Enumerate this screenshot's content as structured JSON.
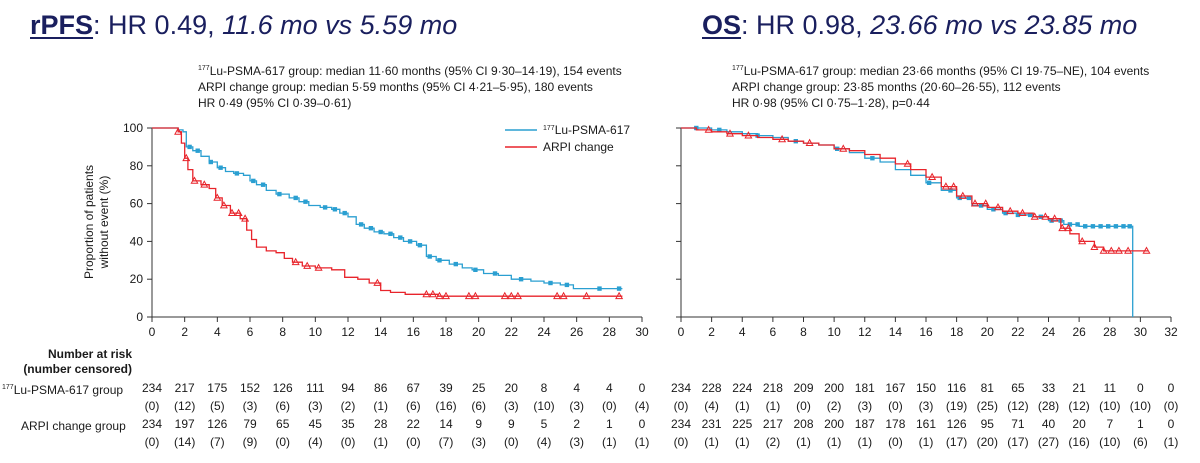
{
  "colors": {
    "lu": "#2a9fd1",
    "arpi": "#e8242b",
    "title": "#1a1f5e",
    "axis": "#333333"
  },
  "rpfs": {
    "title": {
      "key": "rPFS",
      "colon": ":",
      "hr": " HR 0.49, ",
      "medians": "11.6 mo vs 5.59 mo"
    },
    "stats": [
      {
        "sup": "177",
        "text": "Lu-PSMA-617 group: median 11·60 months (95% CI 9·30–14·19), 154 events"
      },
      {
        "sup": "",
        "text": "ARPI change group: median 5·59 months (95% CI 4·21–5·95), 180 events"
      },
      {
        "sup": "",
        "text": "HR 0·49 (95% CI 0·39–0·61)"
      }
    ],
    "legend": [
      {
        "sup": "177",
        "text": "Lu-PSMA-617",
        "color": "#2a9fd1"
      },
      {
        "sup": "",
        "text": "ARPI change",
        "color": "#e8242b"
      }
    ]
  },
  "os": {
    "title": {
      "key": "OS",
      "colon": ":",
      "hr": " HR 0.98, ",
      "medians": "23.66 mo vs 23.85 mo"
    },
    "stats": [
      {
        "sup": "177",
        "text": "Lu-PSMA-617 group: median 23·66 months (95% CI 19·75–NE), 104 events"
      },
      {
        "sup": "",
        "text": "ARPI change group: 23·85 months (20·60–26·55), 112 events"
      },
      {
        "sup": "",
        "text": "HR 0·98 (95% CI 0·75–1·28), p=0·44"
      }
    ]
  },
  "y_axis": {
    "label_line1": "Proportion of patients",
    "label_line2": "without event (%)",
    "ticks": [
      0,
      20,
      40,
      60,
      80,
      100
    ]
  },
  "number_at_risk": {
    "title_line1": "Number at risk",
    "title_line2": "(number censored)",
    "row_lu": {
      "sup": "177",
      "text": "Lu-PSMA-617 group"
    },
    "row_arpi": {
      "sup": "",
      "text": "ARPI change group"
    }
  },
  "chart_data": [
    {
      "type": "line",
      "x_ticks": [
        0,
        2,
        4,
        6,
        8,
        10,
        12,
        14,
        16,
        18,
        20,
        22,
        24,
        26,
        28,
        30
      ],
      "xlim": [
        0,
        30
      ],
      "ylim": [
        0,
        100
      ],
      "series": [
        {
          "name": "177Lu-PSMA-617",
          "color": "#2a9fd1",
          "points": [
            [
              0,
              100
            ],
            [
              1.3,
              100
            ],
            [
              1.6,
              99
            ],
            [
              1.9,
              98
            ],
            [
              2.1,
              90
            ],
            [
              2.5,
              88
            ],
            [
              3,
              85
            ],
            [
              3.5,
              82
            ],
            [
              4,
              79
            ],
            [
              4.5,
              77
            ],
            [
              5,
              76
            ],
            [
              5.6,
              75
            ],
            [
              6,
              72
            ],
            [
              6.4,
              70
            ],
            [
              7,
              67
            ],
            [
              7.6,
              65
            ],
            [
              8.4,
              63
            ],
            [
              9,
              61
            ],
            [
              9.6,
              59
            ],
            [
              10.3,
              58
            ],
            [
              11,
              57
            ],
            [
              11.5,
              55
            ],
            [
              12,
              53
            ],
            [
              12.5,
              49
            ],
            [
              13,
              47
            ],
            [
              13.6,
              45
            ],
            [
              14.2,
              44
            ],
            [
              14.8,
              42
            ],
            [
              15.4,
              40
            ],
            [
              16.2,
              38
            ],
            [
              16.8,
              32
            ],
            [
              17.4,
              30
            ],
            [
              18.2,
              28
            ],
            [
              19,
              26
            ],
            [
              19.6,
              25
            ],
            [
              20.3,
              23
            ],
            [
              21.2,
              22
            ],
            [
              22,
              20
            ],
            [
              23.2,
              19
            ],
            [
              24,
              18
            ],
            [
              25,
              17
            ],
            [
              25.8,
              15
            ],
            [
              27.5,
              15
            ],
            [
              28.8,
              15
            ]
          ],
          "censor_x": [
            2.3,
            2.8,
            3.6,
            4.2,
            5.2,
            6.2,
            6.8,
            7.8,
            8.8,
            9.4,
            10.6,
            11.2,
            11.8,
            12.8,
            13.4,
            14.0,
            14.6,
            15.2,
            15.8,
            16.4,
            17.0,
            17.6,
            18.6,
            19.8,
            21.0,
            22.6,
            24.4,
            25.4,
            27.4,
            28.6
          ]
        },
        {
          "name": "ARPI change",
          "color": "#e8242b",
          "points": [
            [
              0,
              100
            ],
            [
              1.3,
              100
            ],
            [
              1.6,
              98
            ],
            [
              1.8,
              92
            ],
            [
              2,
              84
            ],
            [
              2.2,
              78
            ],
            [
              2.5,
              72
            ],
            [
              3,
              70
            ],
            [
              3.5,
              68
            ],
            [
              3.9,
              63
            ],
            [
              4.3,
              59
            ],
            [
              4.8,
              55
            ],
            [
              5.4,
              52
            ],
            [
              5.8,
              46
            ],
            [
              6.1,
              41
            ],
            [
              6.4,
              37
            ],
            [
              7,
              35
            ],
            [
              7.6,
              34
            ],
            [
              8.1,
              31
            ],
            [
              8.6,
              29
            ],
            [
              9.2,
              27
            ],
            [
              10,
              26
            ],
            [
              11,
              25
            ],
            [
              11.8,
              21
            ],
            [
              12.6,
              20
            ],
            [
              13.3,
              18
            ],
            [
              14,
              14
            ],
            [
              14.6,
              13
            ],
            [
              15.5,
              12
            ],
            [
              16.5,
              12
            ],
            [
              17.5,
              11
            ],
            [
              19,
              11
            ],
            [
              21,
              11
            ],
            [
              24,
              11
            ],
            [
              28,
              11
            ],
            [
              28.8,
              11
            ]
          ],
          "censor_x": [
            1.6,
            2.1,
            2.6,
            3.2,
            4.0,
            4.4,
            4.9,
            5.3,
            5.7,
            8.8,
            9.5,
            10.2,
            13.8,
            16.8,
            17.2,
            17.6,
            18.0,
            19.4,
            19.8,
            21.6,
            22.0,
            22.4,
            24.8,
            25.2,
            26.6,
            28.6
          ]
        }
      ]
    },
    {
      "type": "line",
      "x_ticks": [
        0,
        2,
        4,
        6,
        8,
        10,
        12,
        14,
        16,
        18,
        20,
        22,
        24,
        26,
        28,
        30,
        32
      ],
      "xlim": [
        0,
        32
      ],
      "ylim": [
        0,
        100
      ],
      "series": [
        {
          "name": "177Lu-PSMA-617",
          "color": "#2a9fd1",
          "points": [
            [
              0,
              100
            ],
            [
              1,
              100
            ],
            [
              2,
              99
            ],
            [
              3,
              98
            ],
            [
              4,
              97
            ],
            [
              5,
              96
            ],
            [
              6,
              95
            ],
            [
              7,
              93
            ],
            [
              8,
              92
            ],
            [
              9,
              91
            ],
            [
              10,
              89
            ],
            [
              11,
              87
            ],
            [
              12,
              84
            ],
            [
              13,
              82
            ],
            [
              14,
              78
            ],
            [
              15,
              75
            ],
            [
              16,
              71
            ],
            [
              17,
              67
            ],
            [
              18,
              63
            ],
            [
              19,
              59
            ],
            [
              20,
              57
            ],
            [
              21,
              55
            ],
            [
              22,
              54
            ],
            [
              23,
              53
            ],
            [
              24,
              51
            ],
            [
              25,
              49
            ],
            [
              26,
              48
            ],
            [
              27,
              48
            ],
            [
              28,
              48
            ],
            [
              29.4,
              48
            ],
            [
              29.5,
              0
            ]
          ],
          "censor_x": [
            1,
            2.5,
            5,
            7.5,
            10.2,
            12.5,
            16.2,
            17.6,
            18.2,
            18.8,
            19.6,
            20.4,
            21.2,
            22.0,
            22.8,
            23.5,
            24.2,
            24.8,
            25.4,
            25.9,
            26.4,
            26.9,
            27.4,
            27.9,
            28.4,
            28.9,
            29.3
          ]
        },
        {
          "name": "ARPI change",
          "color": "#e8242b",
          "points": [
            [
              0,
              100
            ],
            [
              1,
              99
            ],
            [
              2,
              98
            ],
            [
              3,
              97
            ],
            [
              4,
              96
            ],
            [
              5,
              95
            ],
            [
              6,
              94
            ],
            [
              7,
              93
            ],
            [
              8,
              92
            ],
            [
              9,
              91
            ],
            [
              10,
              89
            ],
            [
              11,
              88
            ],
            [
              12,
              86
            ],
            [
              13,
              84
            ],
            [
              14,
              81
            ],
            [
              15,
              78
            ],
            [
              16,
              74
            ],
            [
              17,
              69
            ],
            [
              18,
              64
            ],
            [
              19,
              60
            ],
            [
              20,
              58
            ],
            [
              21,
              56
            ],
            [
              22,
              55
            ],
            [
              23,
              53
            ],
            [
              24,
              52
            ],
            [
              24.8,
              47
            ],
            [
              25.4,
              44
            ],
            [
              26,
              40
            ],
            [
              27,
              37
            ],
            [
              27.6,
              35
            ],
            [
              29,
              35
            ],
            [
              30.5,
              35
            ]
          ],
          "censor_x": [
            1.8,
            3.2,
            4.4,
            6.6,
            8.4,
            10.6,
            14.8,
            16.4,
            17.3,
            17.8,
            18.4,
            19.2,
            19.9,
            20.7,
            21.5,
            22.3,
            23.1,
            23.8,
            24.4,
            24.9,
            25.3,
            26.2,
            27.0,
            27.6,
            28.1,
            28.6,
            29.2,
            30.4
          ]
        }
      ]
    }
  ],
  "risk_table": [
    {
      "lu": {
        "n": [
          "234",
          "217",
          "175",
          "152",
          "126",
          "111",
          "94",
          "86",
          "67",
          "39",
          "25",
          "20",
          "8",
          "4",
          "4",
          "0"
        ],
        "c": [
          "(0)",
          "(12)",
          "(5)",
          "(3)",
          "(6)",
          "(3)",
          "(2)",
          "(1)",
          "(6)",
          "(16)",
          "(6)",
          "(3)",
          "(10)",
          "(3)",
          "(0)",
          "(4)"
        ]
      },
      "arpi": {
        "n": [
          "234",
          "197",
          "126",
          "79",
          "65",
          "45",
          "35",
          "28",
          "22",
          "14",
          "9",
          "9",
          "5",
          "2",
          "1",
          "0"
        ],
        "c": [
          "(0)",
          "(14)",
          "(7)",
          "(9)",
          "(0)",
          "(4)",
          "(0)",
          "(1)",
          "(0)",
          "(7)",
          "(3)",
          "(0)",
          "(4)",
          "(3)",
          "(1)",
          "(1)"
        ]
      }
    },
    {
      "lu": {
        "n": [
          "234",
          "228",
          "224",
          "218",
          "209",
          "200",
          "181",
          "167",
          "150",
          "116",
          "81",
          "65",
          "33",
          "21",
          "11",
          "0",
          "0"
        ],
        "c": [
          "(0)",
          "(4)",
          "(1)",
          "(1)",
          "(0)",
          "(2)",
          "(3)",
          "(0)",
          "(3)",
          "(19)",
          "(25)",
          "(12)",
          "(28)",
          "(12)",
          "(10)",
          "(10)",
          "(0)"
        ]
      },
      "arpi": {
        "n": [
          "234",
          "231",
          "225",
          "217",
          "208",
          "200",
          "187",
          "178",
          "161",
          "126",
          "95",
          "71",
          "40",
          "20",
          "7",
          "1",
          "0"
        ],
        "c": [
          "(0)",
          "(1)",
          "(1)",
          "(2)",
          "(1)",
          "(1)",
          "(1)",
          "(0)",
          "(1)",
          "(17)",
          "(20)",
          "(17)",
          "(27)",
          "(16)",
          "(10)",
          "(6)",
          "(1)"
        ]
      }
    }
  ]
}
